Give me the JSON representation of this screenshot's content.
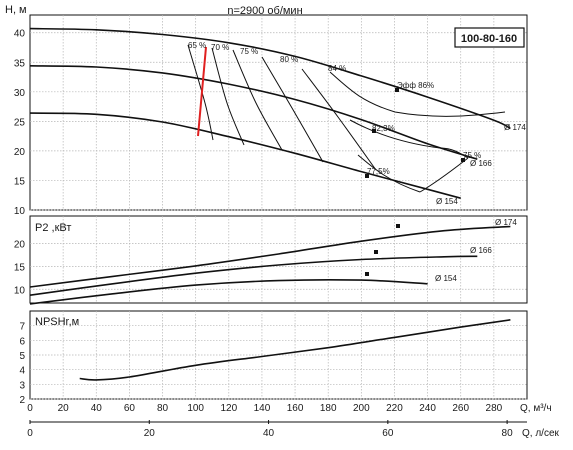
{
  "chart_data": [
    {
      "type": "line",
      "panel": "head",
      "title": "n=2900 об/мин",
      "model_label": "100-80-160",
      "ylabel": "H, м",
      "ylim": [
        10,
        43
      ],
      "yticks": [
        10,
        15,
        20,
        25,
        30,
        35,
        40
      ],
      "xlim": [
        0,
        300
      ],
      "grid": true,
      "series": [
        {
          "name": "Ø 174",
          "x": [
            0,
            40,
            80,
            120,
            160,
            200,
            240,
            280,
            290
          ],
          "y": [
            40.7,
            40.5,
            39.7,
            38.3,
            36.0,
            32.7,
            29.1,
            25.2,
            23.8
          ]
        },
        {
          "name": "Ø 166",
          "x": [
            0,
            40,
            80,
            120,
            160,
            200,
            240,
            270
          ],
          "y": [
            34.4,
            34.2,
            33.2,
            31.3,
            28.7,
            25.3,
            21.2,
            18.6
          ]
        },
        {
          "name": "Ø 154",
          "x": [
            0,
            40,
            80,
            120,
            160,
            200,
            240,
            260
          ],
          "y": [
            26.4,
            26.2,
            24.9,
            22.4,
            19.6,
            16.5,
            13.5,
            12.0
          ]
        }
      ],
      "efficiency_labels": [
        "65 %",
        "70 %",
        "75 %",
        "80 %",
        "84 %",
        "Эфф  86%",
        "82,3%",
        "75 %",
        "77,5%"
      ],
      "series_labels": [
        "Ø 174",
        "Ø 166",
        "Ø 154"
      ]
    },
    {
      "type": "line",
      "panel": "power",
      "ylabel": "P2 ,кВт",
      "ylim": [
        7,
        26
      ],
      "yticks": [
        10,
        15,
        20
      ],
      "xlim": [
        0,
        300
      ],
      "grid": true,
      "series": [
        {
          "name": "Ø 174",
          "x": [
            0,
            50,
            100,
            150,
            200,
            250,
            290
          ],
          "y": [
            10.5,
            12.8,
            15.1,
            17.7,
            20.5,
            22.8,
            23.7
          ]
        },
        {
          "name": "Ø 166",
          "x": [
            0,
            50,
            100,
            150,
            200,
            250,
            270
          ],
          "y": [
            8.7,
            11.2,
            13.5,
            15.3,
            16.5,
            17.1,
            17.2
          ]
        },
        {
          "name": "Ø 154",
          "x": [
            0,
            50,
            100,
            150,
            200,
            240
          ],
          "y": [
            6.8,
            9.0,
            10.9,
            11.9,
            12.0,
            11.2
          ]
        }
      ],
      "series_labels": [
        "Ø 174",
        "Ø 166",
        "Ø 154"
      ]
    },
    {
      "type": "line",
      "panel": "npsh",
      "ylabel": "NPSHr,м",
      "ylim": [
        2,
        8
      ],
      "yticks": [
        2,
        3,
        4,
        5,
        6,
        7
      ],
      "xlim": [
        0,
        300
      ],
      "grid": true,
      "series": [
        {
          "x": [
            30,
            40,
            60,
            100,
            140,
            180,
            220,
            260,
            290
          ],
          "y": [
            3.4,
            3.3,
            3.5,
            4.3,
            4.9,
            5.5,
            6.2,
            6.9,
            7.4
          ]
        }
      ],
      "x_unit_1": "Q, м³/ч",
      "x_ticks_1": [
        0,
        20,
        40,
        60,
        80,
        100,
        120,
        140,
        160,
        180,
        200,
        220,
        240,
        260,
        280
      ],
      "x_unit_2": "Q, л/сек",
      "x_ticks_2": [
        0,
        20,
        40,
        60,
        80
      ]
    }
  ]
}
